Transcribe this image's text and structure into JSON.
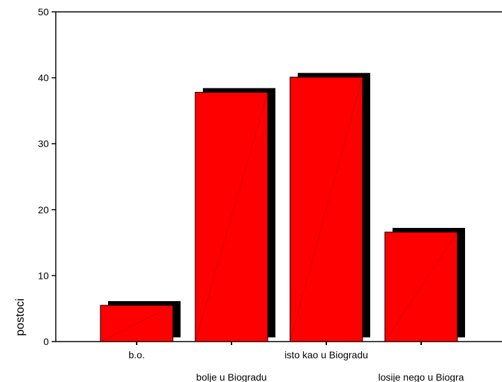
{
  "chart_data": {
    "type": "bar",
    "style": "3d-shadow",
    "categories": [
      "b.o.",
      "bolje u Biogradu",
      "isto kao u Biogradu",
      "losije nego u Biogra"
    ],
    "values": [
      5.5,
      37.8,
      40.1,
      16.6
    ],
    "ylabel": "postoci",
    "xlabel": "",
    "ylim": [
      0,
      50
    ],
    "yticks": [
      0,
      10,
      20,
      30,
      40,
      50
    ],
    "grid": false,
    "legend": "none",
    "colors": {
      "bar": "#ff0000",
      "shadow": "#000000",
      "axis": "#000000"
    }
  }
}
